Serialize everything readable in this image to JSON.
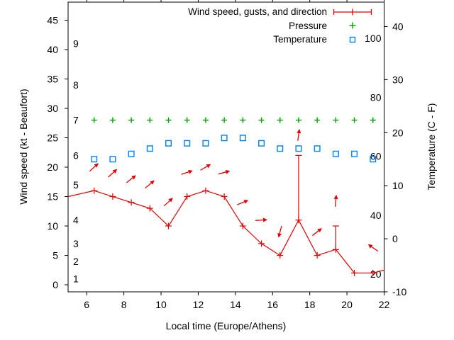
{
  "chart_data": {
    "type": "line",
    "title": "",
    "xlabel": "Local time (Europe/Athens)",
    "ylabel_left": "Wind speed (kt - Beaufort)",
    "ylabel_right": "Temperature (C - F)",
    "x_range": [
      5,
      22
    ],
    "x_ticks": [
      6,
      8,
      10,
      12,
      14,
      16,
      18,
      20,
      22
    ],
    "y_left": {
      "units": "kt",
      "ticks": [
        0,
        5,
        10,
        15,
        20,
        25,
        30,
        35,
        40,
        45
      ],
      "range": [
        -1.2,
        48.07
      ]
    },
    "y_right": {
      "units": "C",
      "ticks": [
        -10,
        0,
        10,
        20,
        30,
        40
      ],
      "range": [
        -10,
        44.6
      ]
    },
    "beaufort_scale_labels": [
      {
        "label": "1",
        "kt": 1
      },
      {
        "label": "2",
        "kt": 4
      },
      {
        "label": "3",
        "kt": 7
      },
      {
        "label": "4",
        "kt": 11
      },
      {
        "label": "5",
        "kt": 17
      },
      {
        "label": "6",
        "kt": 22
      },
      {
        "label": "7",
        "kt": 28
      },
      {
        "label": "8",
        "kt": 34
      },
      {
        "label": "9",
        "kt": 41
      }
    ],
    "fahrenheit_scale_labels": [
      {
        "label": "20",
        "f": 20
      },
      {
        "label": "40",
        "f": 40
      },
      {
        "label": "60",
        "f": 60
      },
      {
        "label": "80",
        "f": 80
      },
      {
        "label": "100",
        "f": 100
      }
    ],
    "colors": {
      "wind": "#e10000",
      "pressure": "#00a000",
      "temperature": "#0080ff",
      "axis": "#000000"
    },
    "legend": {
      "position": "top-right-inside",
      "entries": [
        {
          "label": "Wind speed, gusts, and direction",
          "series": "wind",
          "marker": "errorbar-line"
        },
        {
          "label": "Pressure",
          "series": "pressure",
          "marker": "plus"
        },
        {
          "label": "Temperature",
          "series": "temperature",
          "marker": "open-square"
        }
      ]
    },
    "x": [
      6.4,
      7.4,
      8.4,
      9.4,
      10.4,
      11.4,
      12.4,
      13.4,
      14.4,
      15.4,
      16.4,
      17.4,
      18.4,
      19.4,
      20.4,
      21.4
    ],
    "series": {
      "wind": {
        "name": "Wind speed, gusts, and direction",
        "speed_kt": [
          16,
          15,
          14,
          13,
          10,
          15,
          16,
          15,
          10,
          7,
          5,
          11,
          5,
          6,
          2,
          2
        ],
        "gust_kt": [
          16,
          15,
          14,
          13,
          10,
          15,
          16,
          15,
          10,
          7,
          5,
          22,
          5,
          10,
          2,
          2
        ],
        "edge_start": {
          "x": 5,
          "kt": 15
        },
        "edge_end": {
          "x": 22,
          "kt": 2.5
        }
      },
      "pressure": {
        "name": "Pressure",
        "plot_level_on_left_axis": 28
      },
      "temperature": {
        "name": "Temperature",
        "values_c": [
          15,
          15,
          16,
          17,
          18,
          18,
          18,
          19,
          19,
          18,
          17,
          17,
          17,
          16,
          16,
          15
        ]
      }
    },
    "wind_direction_arrows": [
      {
        "t": 6.4,
        "kt": 20.0,
        "deg": 42
      },
      {
        "t": 7.4,
        "kt": 19.0,
        "deg": 42
      },
      {
        "t": 8.4,
        "kt": 18.0,
        "deg": 38
      },
      {
        "t": 9.4,
        "kt": 17.1,
        "deg": 40
      },
      {
        "t": 10.4,
        "kt": 14.1,
        "deg": 42
      },
      {
        "t": 11.4,
        "kt": 19.1,
        "deg": 18
      },
      {
        "t": 12.4,
        "kt": 20.0,
        "deg": 30
      },
      {
        "t": 13.4,
        "kt": 19.1,
        "deg": 15
      },
      {
        "t": 14.4,
        "kt": 14.0,
        "deg": 22
      },
      {
        "t": 15.4,
        "kt": 11.0,
        "deg": 4
      },
      {
        "t": 16.4,
        "kt": 9.0,
        "deg": -105
      },
      {
        "t": 17.4,
        "kt": 25.5,
        "deg": 82
      },
      {
        "t": 18.4,
        "kt": 9.0,
        "deg": 38
      },
      {
        "t": 19.4,
        "kt": 14.3,
        "deg": 85
      },
      {
        "t": 21.4,
        "kt": 6.3,
        "deg": 145
      }
    ]
  }
}
